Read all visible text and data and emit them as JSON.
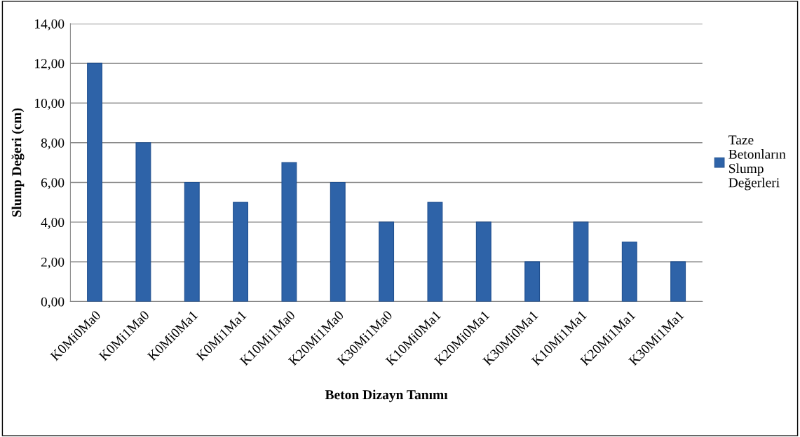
{
  "chart_data": {
    "type": "bar",
    "xlabel": "Beton Dizayn Tanımı",
    "ylabel": "Slump Değeri (cm)",
    "categories": [
      "K0Mi0Ma0",
      "K0Mi1Ma0",
      "K0Mi0Ma1",
      "K0Mi1Ma1",
      "K10Mi1Ma0",
      "K20Mi1Ma0",
      "K30Mi1Ma0",
      "K10Mi0Ma1",
      "K20Mi0Ma1",
      "K30Mi0Ma1",
      "K10Mi1Ma1",
      "K20Mi1Ma1",
      "K30Mi1Ma1"
    ],
    "series": [
      {
        "name": "Taze Betonların Slump Değerleri",
        "color": "#2e63a8",
        "values": [
          12,
          8,
          6,
          5,
          7,
          6,
          4,
          5,
          4,
          2,
          4,
          3,
          2
        ]
      }
    ],
    "ylim": [
      0,
      14
    ],
    "yticks": [
      {
        "value": 0,
        "label": "0,00"
      },
      {
        "value": 2,
        "label": "2,00"
      },
      {
        "value": 4,
        "label": "4,00"
      },
      {
        "value": 6,
        "label": "6,00"
      },
      {
        "value": 8,
        "label": "8,00"
      },
      {
        "value": 10,
        "label": "10,00"
      },
      {
        "value": 12,
        "label": "12,00"
      },
      {
        "value": 14,
        "label": "14,00"
      }
    ],
    "grid": "y",
    "legend": "right"
  }
}
